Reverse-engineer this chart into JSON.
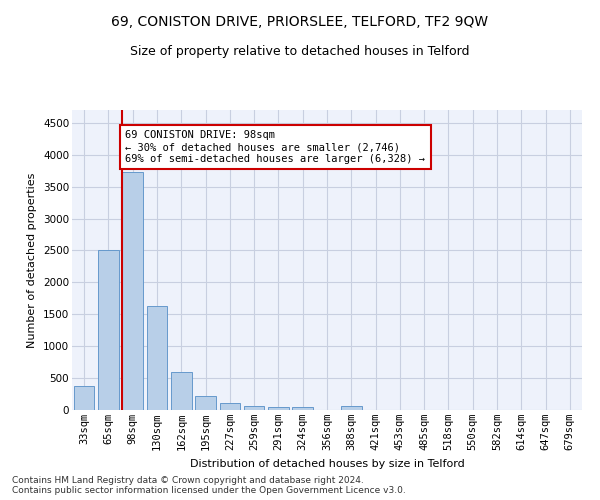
{
  "title1": "69, CONISTON DRIVE, PRIORSLEE, TELFORD, TF2 9QW",
  "title2": "Size of property relative to detached houses in Telford",
  "xlabel": "Distribution of detached houses by size in Telford",
  "ylabel": "Number of detached properties",
  "categories": [
    "33sqm",
    "65sqm",
    "98sqm",
    "130sqm",
    "162sqm",
    "195sqm",
    "227sqm",
    "259sqm",
    "291sqm",
    "324sqm",
    "356sqm",
    "388sqm",
    "421sqm",
    "453sqm",
    "485sqm",
    "518sqm",
    "550sqm",
    "582sqm",
    "614sqm",
    "647sqm",
    "679sqm"
  ],
  "values": [
    370,
    2510,
    3730,
    1630,
    590,
    225,
    110,
    65,
    45,
    40,
    0,
    60,
    0,
    0,
    0,
    0,
    0,
    0,
    0,
    0,
    0
  ],
  "bar_color": "#b8cfe8",
  "bar_edge_color": "#6699cc",
  "highlight_bar_index": 2,
  "highlight_line_color": "#cc0000",
  "annotation_text": "69 CONISTON DRIVE: 98sqm\n← 30% of detached houses are smaller (2,746)\n69% of semi-detached houses are larger (6,328) →",
  "annotation_box_facecolor": "#ffffff",
  "annotation_box_edgecolor": "#cc0000",
  "ylim": [
    0,
    4700
  ],
  "yticks": [
    0,
    500,
    1000,
    1500,
    2000,
    2500,
    3000,
    3500,
    4000,
    4500
  ],
  "background_color": "#eef2fb",
  "grid_color": "#c8cfe0",
  "title1_fontsize": 10,
  "title2_fontsize": 9,
  "axis_label_fontsize": 8,
  "tick_fontsize": 7.5,
  "annotation_fontsize": 7.5,
  "footnote_fontsize": 6.5,
  "footnote": "Contains HM Land Registry data © Crown copyright and database right 2024.\nContains public sector information licensed under the Open Government Licence v3.0."
}
